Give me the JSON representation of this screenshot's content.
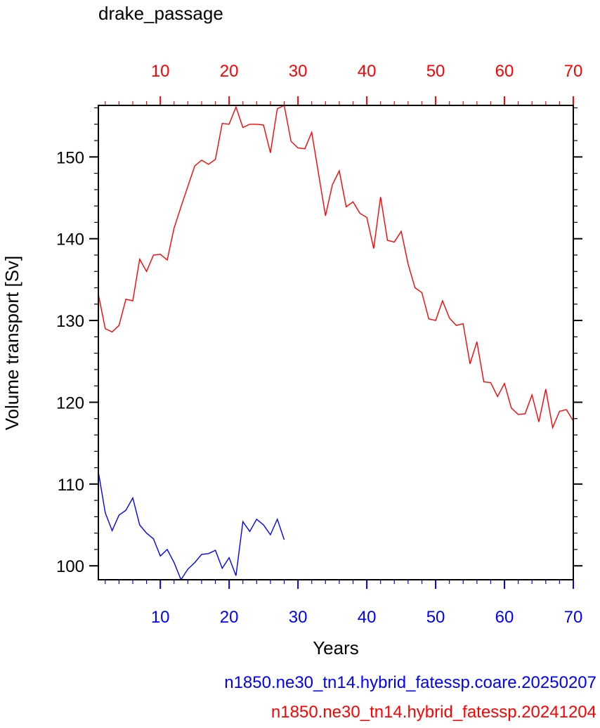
{
  "chart_data": {
    "type": "line",
    "title": "drake_passage",
    "xlabel": "Years",
    "ylabel": "Volume transport [Sv]",
    "xlim": [
      1,
      70
    ],
    "ylim": [
      98.3,
      156.3
    ],
    "x_ticks": [
      10,
      20,
      30,
      40,
      50,
      60,
      70
    ],
    "y_ticks": [
      100,
      110,
      120,
      130,
      140,
      150
    ],
    "grid": false,
    "bottom_axis_color": "#0000ff",
    "top_axis_color": "#ff0000",
    "series": [
      {
        "name": "n1850.ne30_tn14.hybrid_fatessp.coare.20250207",
        "color": "#0000ff",
        "x": [
          1,
          2,
          3,
          4,
          5,
          6,
          7,
          8,
          9,
          10,
          11,
          12,
          13,
          14,
          15,
          16,
          17,
          18,
          19,
          20,
          21,
          22,
          23,
          24,
          25,
          26,
          27,
          28
        ],
        "values": [
          111.5,
          106.5,
          104.3,
          106.2,
          106.8,
          108.3,
          105.0,
          104.0,
          103.3,
          101.2,
          102.0,
          100.4,
          98.3,
          99.6,
          100.4,
          101.4,
          101.5,
          101.9,
          99.7,
          101.0,
          98.8,
          105.4,
          104.2,
          105.7,
          105.0,
          103.8,
          105.7,
          103.2
        ]
      },
      {
        "name": "n1850.ne30_tn14.hybrid_fatessp.20241204",
        "color": "#ff0000",
        "x": [
          1,
          2,
          3,
          4,
          5,
          6,
          7,
          8,
          9,
          10,
          11,
          12,
          13,
          14,
          15,
          16,
          17,
          18,
          19,
          20,
          21,
          22,
          23,
          24,
          25,
          26,
          27,
          28,
          29,
          30,
          31,
          32,
          33,
          34,
          35,
          36,
          37,
          38,
          39,
          40,
          41,
          42,
          43,
          44,
          45,
          46,
          47,
          48,
          49,
          50,
          51,
          52,
          53,
          54,
          55,
          56,
          57,
          58,
          59,
          60,
          61,
          62,
          63,
          64,
          65,
          66,
          67,
          68,
          69,
          70
        ],
        "values": [
          133.2,
          129.0,
          128.6,
          129.4,
          132.6,
          132.4,
          137.5,
          136.0,
          138.0,
          138.1,
          137.4,
          141.3,
          143.9,
          146.4,
          148.9,
          149.6,
          149.1,
          149.7,
          154.1,
          154.0,
          156.1,
          153.6,
          154.0,
          154.0,
          153.9,
          150.5,
          155.9,
          156.3,
          151.9,
          151.1,
          151.0,
          153.0,
          147.9,
          142.8,
          146.6,
          148.3,
          143.9,
          144.5,
          143.1,
          142.6,
          138.8,
          145.1,
          139.8,
          139.6,
          140.9,
          136.9,
          134.0,
          133.4,
          130.2,
          130.0,
          132.4,
          130.3,
          129.4,
          129.6,
          124.7,
          127.4,
          122.5,
          122.4,
          120.7,
          122.3,
          119.3,
          118.5,
          118.6,
          120.9,
          117.6,
          121.6,
          116.9,
          118.9,
          119.1,
          117.7
        ]
      }
    ],
    "legend": {
      "placement": "bottom-right",
      "entries": [
        {
          "label": "n1850.ne30_tn14.hybrid_fatessp.coare.20250207",
          "color": "#0000ff"
        },
        {
          "label": "n1850.ne30_tn14.hybrid_fatessp.20241204",
          "color": "#ff0000"
        }
      ]
    }
  }
}
